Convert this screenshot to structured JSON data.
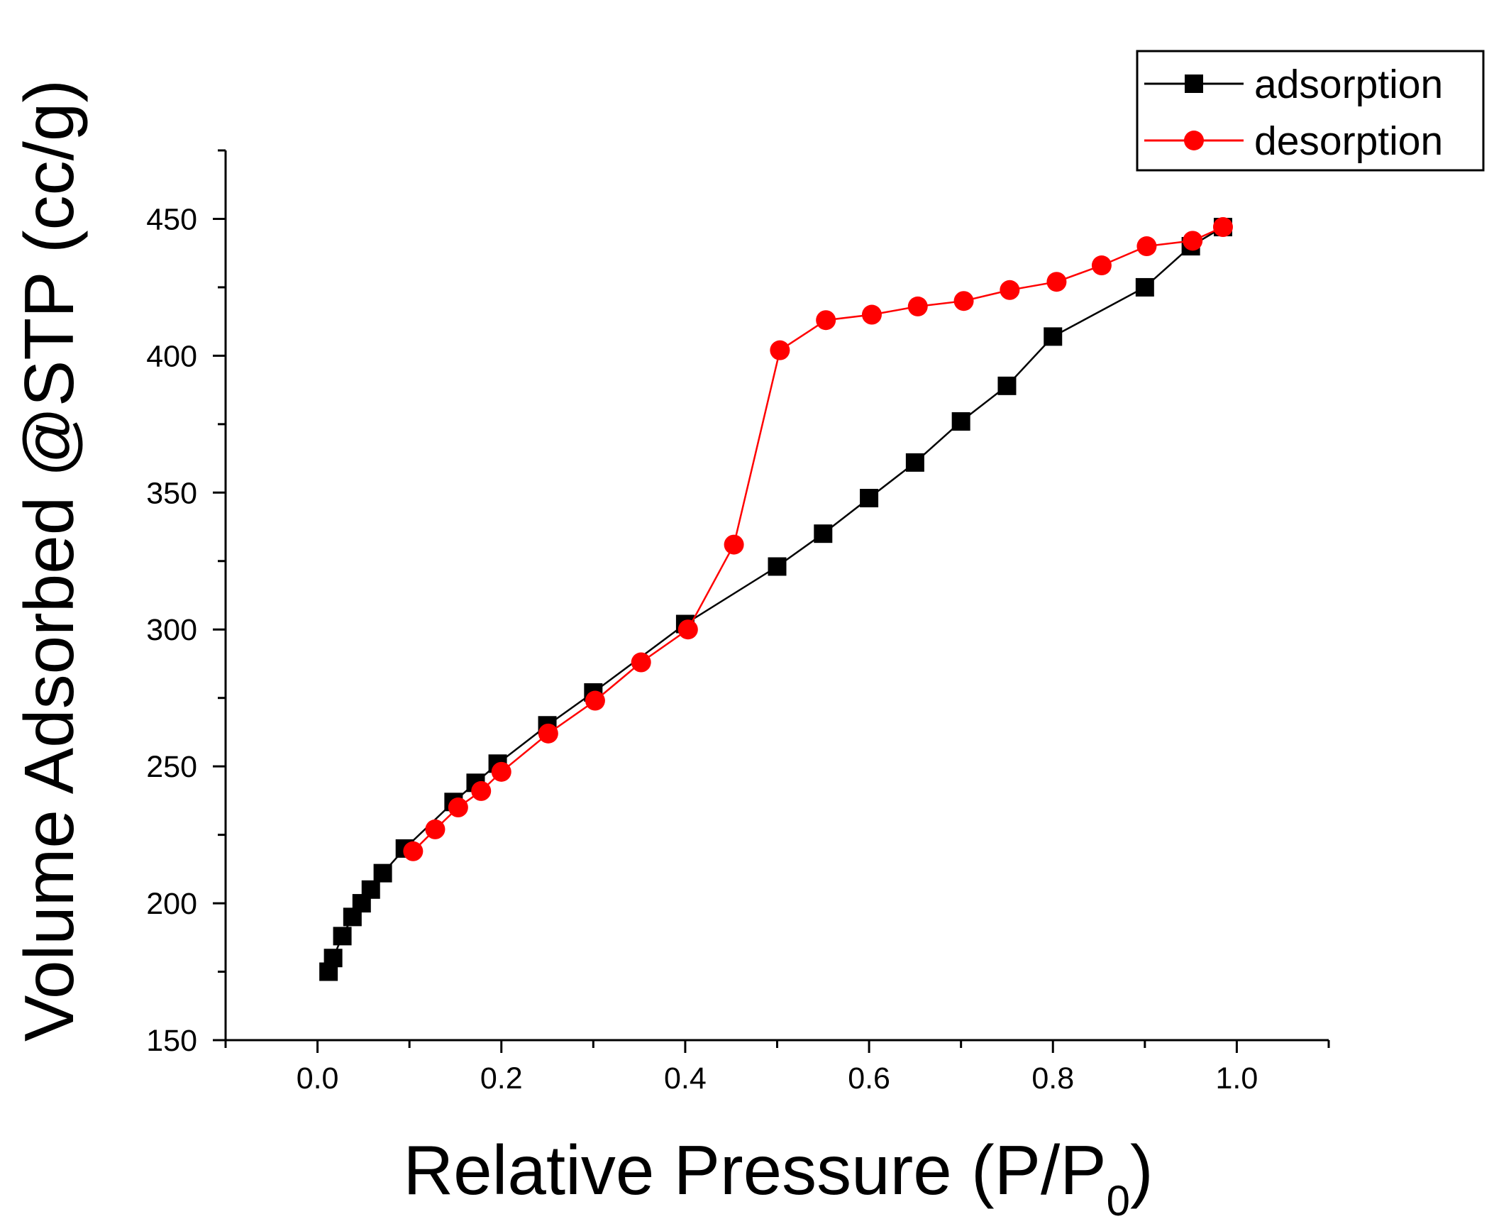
{
  "chart_data": {
    "type": "line",
    "title": "",
    "xlabel": "Relative Pressure (P/P0)",
    "xlabel_main": "Relative Pressure (P/P",
    "xlabel_subscript": "0",
    "xlabel_close": ")",
    "ylabel": "Volume Adsorbed @STP (cc/g)",
    "xlim": [
      -0.1,
      1.1
    ],
    "ylim": [
      150,
      475
    ],
    "x_ticks": [
      0.0,
      0.2,
      0.4,
      0.6,
      0.8,
      1.0
    ],
    "x_tick_labels": [
      "0.0",
      "0.2",
      "0.4",
      "0.6",
      "0.8",
      "1.0"
    ],
    "x_minor_ticks": [
      -0.1,
      0.1,
      0.3,
      0.5,
      0.7,
      0.9,
      1.1
    ],
    "y_ticks": [
      150,
      200,
      250,
      300,
      350,
      400,
      450
    ],
    "y_tick_labels": [
      "150",
      "200",
      "250",
      "300",
      "350",
      "400",
      "450"
    ],
    "y_minor_ticks": [
      175,
      225,
      275,
      325,
      375,
      425,
      475
    ],
    "grid": false,
    "legend_position": "top-right",
    "series": [
      {
        "name": "adsorption",
        "color": "#000000",
        "marker": "square",
        "x": [
          0.012,
          0.017,
          0.027,
          0.038,
          0.048,
          0.058,
          0.071,
          0.095,
          0.148,
          0.172,
          0.196,
          0.25,
          0.3,
          0.4,
          0.5,
          0.55,
          0.6,
          0.65,
          0.7,
          0.75,
          0.8,
          0.9,
          0.95,
          0.985
        ],
        "y": [
          175,
          180,
          188,
          195,
          200,
          205,
          211,
          220,
          237,
          244,
          251,
          265,
          277,
          302,
          323,
          335,
          348,
          361,
          376,
          389,
          407,
          425,
          440,
          447
        ]
      },
      {
        "name": "desorption",
        "color": "#ff0000",
        "marker": "circle",
        "x": [
          0.985,
          0.952,
          0.902,
          0.853,
          0.804,
          0.753,
          0.703,
          0.653,
          0.603,
          0.553,
          0.503,
          0.453,
          0.403,
          0.352,
          0.302,
          0.251,
          0.2,
          0.178,
          0.153,
          0.128,
          0.104
        ],
        "y": [
          447,
          442,
          440,
          433,
          427,
          424,
          420,
          418,
          415,
          413,
          402,
          331,
          300,
          288,
          274,
          262,
          248,
          241,
          235,
          227,
          219
        ]
      }
    ]
  }
}
